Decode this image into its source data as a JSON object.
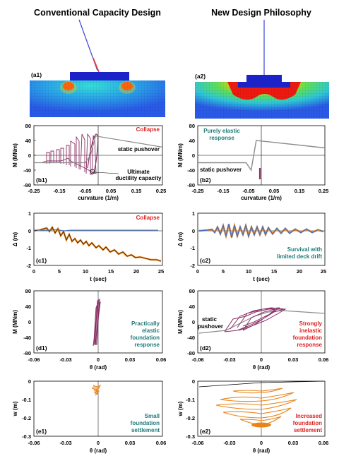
{
  "header": {
    "left_title": "Conventional Capacity Design",
    "right_title": "New Design Philosophy"
  },
  "panel_labels": {
    "a1": "(a1)",
    "a2": "(a2)",
    "b1": "(b1)",
    "b2": "(b2)",
    "c1": "(c1)",
    "c2": "(c2)",
    "d1": "(d1)",
    "d2": "(d2)",
    "e1": "(e1)",
    "e2": "(e2)"
  },
  "annotations": {
    "b1_collapse": "Collapse",
    "b1_static": "static pushover",
    "b1_ultimate_1": "Ultimate",
    "b1_ultimate_2": "ductility capacity",
    "b2_elastic_1": "Purely elastic",
    "b2_elastic_2": "response",
    "b2_static": "static pushover",
    "c1_collapse": "Collapse",
    "c2_survival_1": "Survival with",
    "c2_survival_2": "limited deck drift",
    "d1_text_1": "Practically",
    "d1_text_2": "elastic",
    "d1_text_3": "foundation",
    "d1_text_4": "response",
    "d2_static_1": "static",
    "d2_static_2": "pushover",
    "d2_text_1": "Strongly",
    "d2_text_2": "inelastic",
    "d2_text_3": "foundation",
    "d2_text_4": "response",
    "e1_text_1": "Small",
    "e1_text_2": "foundation",
    "e1_text_3": "settlement",
    "e2_text_1": "Increased",
    "e2_text_2": "foundation",
    "e2_text_3": "settlement"
  },
  "axes": {
    "b": {
      "ylabel": "M (MNm)",
      "xlabel": "curvature (1/m)",
      "yticks": [
        "80",
        "40",
        "0",
        "-40",
        "-80"
      ],
      "xticks": [
        "-0.25",
        "-0.15",
        "-0.05",
        "0.05",
        "0.15",
        "0.25"
      ]
    },
    "c": {
      "ylabel": "Δ (m)",
      "xlabel": "t (sec)",
      "yticks": [
        "1",
        "0",
        "-1",
        "-2"
      ],
      "xticks": [
        "0",
        "5",
        "10",
        "15",
        "20",
        "25"
      ]
    },
    "d": {
      "ylabel": "M (MNm)",
      "xlabel": "θ (rad)",
      "yticks": [
        "80",
        "40",
        "0",
        "-40",
        "-80"
      ],
      "xticks": [
        "-0.06",
        "-0.03",
        "0",
        "0.03",
        "0.06"
      ]
    },
    "e": {
      "ylabel": "w (m)",
      "xlabel": "θ (rad)",
      "yticks": [
        "0",
        "-0.1",
        "-0.2",
        "-0.3"
      ],
      "xticks": [
        "-0.06",
        "-0.03",
        "0",
        "0.03",
        "0.06"
      ]
    }
  },
  "colors": {
    "hysteresis": "#8a2f64",
    "static": "#8c8c8c",
    "response_blue": "#3b6fd0",
    "response_orange": "#e8841a",
    "red_text": "#e02020",
    "teal_text": "#1e7a7a",
    "deck": "#1a22c8",
    "soil_base": "#2a63e8"
  },
  "chart_data": [
    {
      "type": "line",
      "id": "b1",
      "xlabel": "curvature (1/m)",
      "ylabel": "M (MNm)",
      "xlim": [
        -0.25,
        0.25
      ],
      "ylim": [
        -80,
        80
      ],
      "series": [
        {
          "name": "static pushover",
          "x": [
            -0.25,
            -0.05,
            -0.03,
            -0.01,
            0.25
          ],
          "y": [
            -20,
            -20,
            0,
            52,
            22
          ]
        }
      ]
    },
    {
      "type": "line",
      "id": "b2",
      "xlabel": "curvature (1/m)",
      "ylabel": "M (MNm)",
      "xlim": [
        -0.25,
        0.25
      ],
      "ylim": [
        -80,
        80
      ],
      "series": [
        {
          "name": "static pushover",
          "x": [
            -0.25,
            -0.06,
            -0.04,
            -0.02,
            0.25
          ],
          "y": [
            -20,
            -20,
            -40,
            40,
            20
          ]
        }
      ]
    },
    {
      "type": "line",
      "id": "c1",
      "xlabel": "t (sec)",
      "ylabel": "Δ (m)",
      "xlim": [
        0,
        25
      ],
      "ylim": [
        -2,
        1
      ]
    },
    {
      "type": "line",
      "id": "c2",
      "xlabel": "t (sec)",
      "ylabel": "Δ (m)",
      "xlim": [
        0,
        25
      ],
      "ylim": [
        -2,
        1
      ]
    },
    {
      "type": "line",
      "id": "d1",
      "xlabel": "θ (rad)",
      "ylabel": "M (MNm)",
      "xlim": [
        -0.06,
        0.06
      ],
      "ylim": [
        -80,
        80
      ]
    },
    {
      "type": "line",
      "id": "d2",
      "xlabel": "θ (rad)",
      "ylabel": "M (MNm)",
      "xlim": [
        -0.06,
        0.06
      ],
      "ylim": [
        -80,
        80
      ]
    },
    {
      "type": "line",
      "id": "e1",
      "xlabel": "θ (rad)",
      "ylabel": "w (m)",
      "xlim": [
        -0.06,
        0.06
      ],
      "ylim": [
        -0.3,
        0
      ]
    },
    {
      "type": "line",
      "id": "e2",
      "xlabel": "θ (rad)",
      "ylabel": "w (m)",
      "xlim": [
        -0.06,
        0.06
      ],
      "ylim": [
        -0.3,
        0
      ]
    }
  ]
}
